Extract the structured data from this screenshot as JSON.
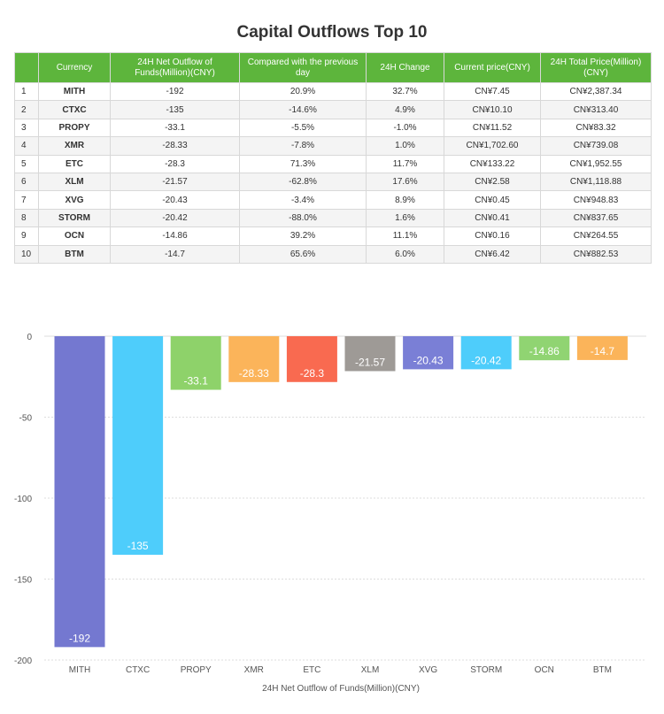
{
  "title": "Capital Outflows Top 10",
  "table": {
    "headers": [
      "",
      "Currency",
      "24H Net Outflow of Funds(Million)(CNY)",
      "Compared with the previous day",
      "24H Change",
      "Current price(CNY)",
      "24H Total Price(Million)(CNY)"
    ],
    "rows": [
      [
        "1",
        "MITH",
        "-192",
        "20.9%",
        "32.7%",
        "CN¥7.45",
        "CN¥2,387.34"
      ],
      [
        "2",
        "CTXC",
        "-135",
        "-14.6%",
        "4.9%",
        "CN¥10.10",
        "CN¥313.40"
      ],
      [
        "3",
        "PROPY",
        "-33.1",
        "-5.5%",
        "-1.0%",
        "CN¥11.52",
        "CN¥83.32"
      ],
      [
        "4",
        "XMR",
        "-28.33",
        "-7.8%",
        "1.0%",
        "CN¥1,702.60",
        "CN¥739.08"
      ],
      [
        "5",
        "ETC",
        "-28.3",
        "71.3%",
        "11.7%",
        "CN¥133.22",
        "CN¥1,952.55"
      ],
      [
        "6",
        "XLM",
        "-21.57",
        "-62.8%",
        "17.6%",
        "CN¥2.58",
        "CN¥1,118.88"
      ],
      [
        "7",
        "XVG",
        "-20.43",
        "-3.4%",
        "8.9%",
        "CN¥0.45",
        "CN¥948.83"
      ],
      [
        "8",
        "STORM",
        "-20.42",
        "-88.0%",
        "1.6%",
        "CN¥0.41",
        "CN¥837.65"
      ],
      [
        "9",
        "OCN",
        "-14.86",
        "39.2%",
        "11.1%",
        "CN¥0.16",
        "CN¥264.55"
      ],
      [
        "10",
        "BTM",
        "-14.7",
        "65.6%",
        "6.0%",
        "CN¥6.42",
        "CN¥882.53"
      ]
    ]
  },
  "chart_data": {
    "type": "bar",
    "categories": [
      "MITH",
      "CTXC",
      "PROPY",
      "XMR",
      "ETC",
      "XLM",
      "XVG",
      "STORM",
      "OCN",
      "BTM"
    ],
    "values": [
      -192,
      -135,
      -33.1,
      -28.33,
      -28.3,
      -21.57,
      -20.43,
      -20.42,
      -14.86,
      -14.7
    ],
    "value_labels": [
      "-192",
      "-135",
      "-33.1",
      "-28.33",
      "-28.3",
      "-21.57",
      "-20.43",
      "-20.42",
      "-14.86",
      "-14.7"
    ],
    "colors": [
      "#7478d0",
      "#4ecdfb",
      "#8ed26a",
      "#fbb45a",
      "#f96a50",
      "#9e9a96",
      "#7a7fd6",
      "#4ecdfb",
      "#90d472",
      "#fbb45a"
    ],
    "title": "",
    "xlabel": "24H Net Outflow of Funds(Million)(CNY)",
    "ylabel": "",
    "ylim": [
      -200,
      0
    ],
    "yticks": [
      0,
      -50,
      -100,
      -150,
      -200
    ],
    "grid": true,
    "grid_color": "#dddddd",
    "legend": "none"
  }
}
